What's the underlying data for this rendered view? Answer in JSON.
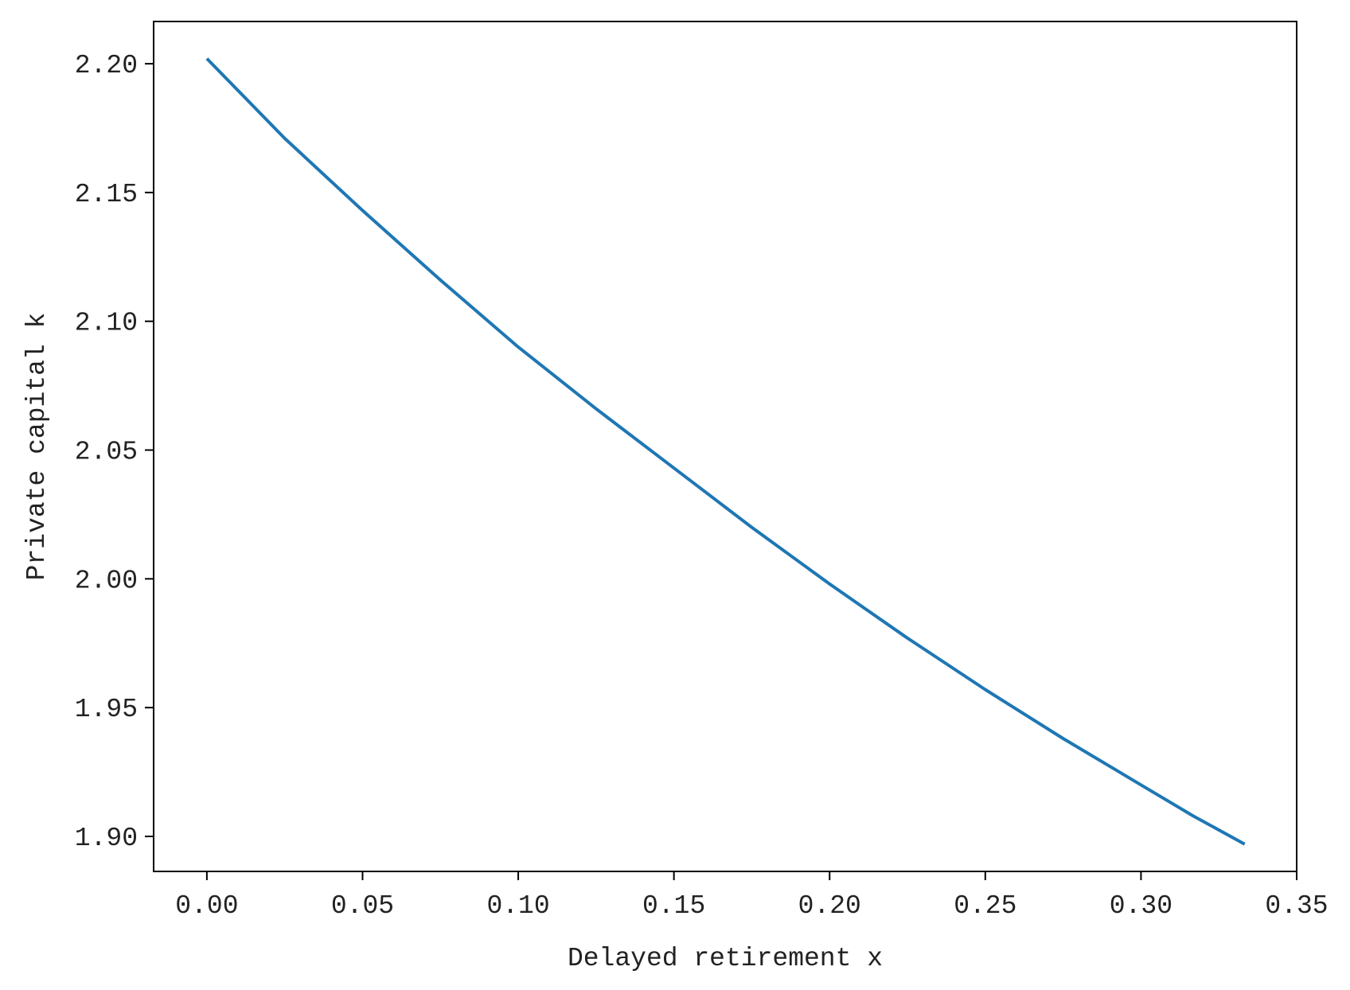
{
  "chart_data": {
    "type": "line",
    "title": "",
    "xlabel": "Delayed retirement x",
    "ylabel": "Private capital k",
    "xlim": [
      -0.0171,
      0.35
    ],
    "ylim": [
      1.8864,
      2.2164
    ],
    "xticks": [
      0.0,
      0.05,
      0.1,
      0.15,
      0.2,
      0.25,
      0.3,
      0.35
    ],
    "xtick_labels": [
      "0.00",
      "0.05",
      "0.10",
      "0.15",
      "0.20",
      "0.25",
      "0.30",
      "0.35"
    ],
    "yticks": [
      1.9,
      1.95,
      2.0,
      2.05,
      2.1,
      2.15,
      2.2
    ],
    "ytick_labels": [
      "1.90",
      "1.95",
      "2.00",
      "2.05",
      "2.10",
      "2.15",
      "2.20"
    ],
    "grid": false,
    "series": [
      {
        "color": "#1f77b4",
        "x": [
          0.0,
          0.025,
          0.05,
          0.075,
          0.1,
          0.125,
          0.15,
          0.175,
          0.2,
          0.225,
          0.25,
          0.275,
          0.3,
          0.3167,
          0.3333
        ],
        "y": [
          2.202,
          2.171,
          2.143,
          2.116,
          2.09,
          2.066,
          2.043,
          2.02,
          1.998,
          1.977,
          1.957,
          1.938,
          1.92,
          1.908,
          1.897
        ]
      }
    ]
  }
}
